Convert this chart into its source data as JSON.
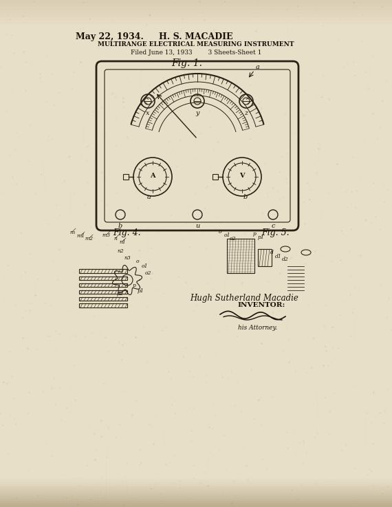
{
  "bg_color": "#e8dfc8",
  "paper_texture": true,
  "title_date": "May 22, 1934.",
  "title_inventor": "H. S. MACADIE",
  "title_patent": "MULTIRANGE ELECTRICAL MEASURING INSTRUMENT",
  "title_filed": "Filed June 13, 1933        3 Sheets-Sheet 1",
  "fig1_label": "Fig. 1.",
  "fig4_label": "Fig. 4.",
  "fig5_label": "Fig. 5.",
  "inventor_name": "Hugh Sutherland Macadie",
  "inventor_label": "INVENTOR:",
  "attorney_label": "his Attorney.",
  "line_color": "#2a2015",
  "text_color": "#1a1208"
}
